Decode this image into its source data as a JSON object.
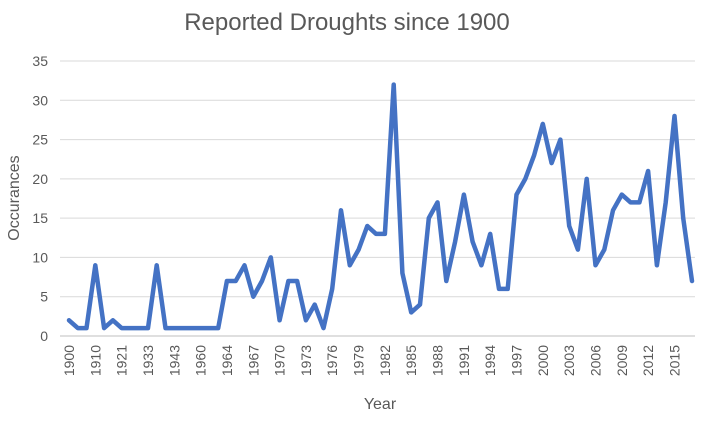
{
  "chart_data": {
    "type": "line",
    "title": "Reported Droughts since 1900",
    "xlabel": "Year",
    "ylabel": "Occurances",
    "ylim": [
      0,
      35
    ],
    "yticks": [
      0,
      5,
      10,
      15,
      20,
      25,
      30,
      35
    ],
    "grid": true,
    "legend": "none",
    "x_tick_labels": [
      "1900",
      "1910",
      "1921",
      "1933",
      "1943",
      "1960",
      "1964",
      "1967",
      "1970",
      "1973",
      "1976",
      "1979",
      "1982",
      "1985",
      "1988",
      "1991",
      "1994",
      "1997",
      "2000",
      "2003",
      "2006",
      "2009",
      "2012",
      "2015"
    ],
    "series": [
      {
        "color": "#4472c4",
        "values": [
          2,
          1,
          1,
          9,
          1,
          2,
          1,
          1,
          1,
          1,
          9,
          1,
          1,
          1,
          1,
          1,
          1,
          1,
          7,
          7,
          9,
          5,
          7,
          10,
          2,
          7,
          7,
          2,
          4,
          1,
          6,
          16,
          9,
          11,
          14,
          13,
          13,
          32,
          8,
          3,
          4,
          15,
          17,
          7,
          12,
          18,
          12,
          9,
          13,
          6,
          6,
          18,
          20,
          23,
          27,
          22,
          25,
          14,
          11,
          20,
          9,
          11,
          16,
          18,
          17,
          17,
          21,
          9,
          17,
          28,
          15,
          7
        ]
      }
    ]
  }
}
